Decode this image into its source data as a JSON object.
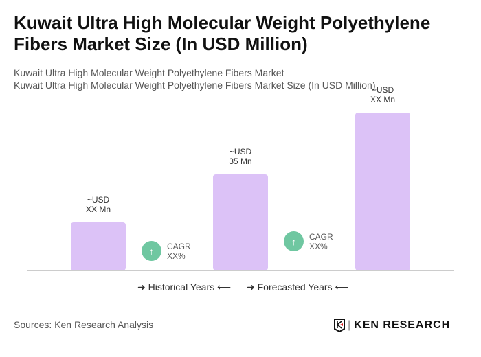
{
  "title": "Kuwait Ultra High Molecular Weight Polyethylene Fibers Market Size (In USD Million)",
  "subtitle1": "Kuwait Ultra High Molecular Weight Polyethylene Fibers Market",
  "subtitle2": "Kuwait Ultra High Molecular Weight Polyethylene Fibers Market Size (In USD Million)",
  "chart_data": {
    "type": "bar",
    "categories": [
      "",
      "",
      ""
    ],
    "values": [
      17.5,
      35,
      57.5
    ],
    "data_labels": [
      [
        "~USD",
        "XX Mn"
      ],
      [
        "~USD",
        "35 Mn"
      ],
      [
        "~USD",
        "XX Mn"
      ]
    ],
    "bar_color": "#dcc2f7",
    "ylim": [
      0,
      60
    ],
    "grid": false,
    "annotations": [
      {
        "line1": "CAGR",
        "line2": "XX%"
      },
      {
        "line1": "CAGR",
        "line2": "XX%"
      }
    ],
    "cagr_color": "#6fc7a1",
    "legend": [
      "Historical Years",
      "Forecasted Years"
    ]
  },
  "sources": "Sources: Ken Research Analysis",
  "logo": "KEN RESEARCH"
}
